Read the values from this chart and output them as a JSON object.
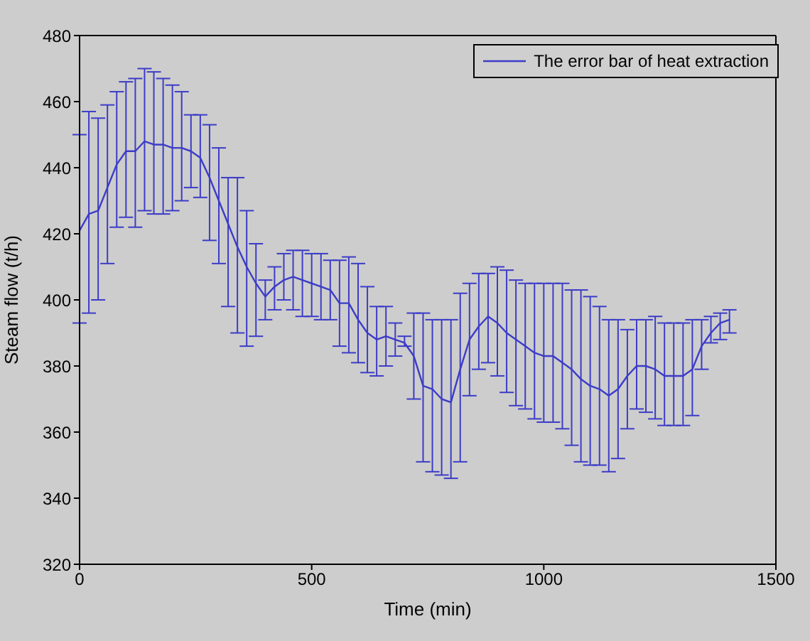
{
  "chart_data": {
    "type": "line",
    "xlabel": "Time (min)",
    "ylabel": "Steam flow (t/h)",
    "x": [
      0,
      20,
      40,
      60,
      80,
      100,
      120,
      140,
      160,
      180,
      200,
      220,
      240,
      260,
      280,
      300,
      320,
      340,
      360,
      380,
      400,
      420,
      440,
      460,
      480,
      500,
      520,
      540,
      560,
      580,
      600,
      620,
      640,
      660,
      680,
      700,
      720,
      740,
      760,
      780,
      800,
      820,
      840,
      860,
      880,
      900,
      920,
      940,
      960,
      980,
      1000,
      1020,
      1040,
      1060,
      1080,
      1100,
      1120,
      1140,
      1160,
      1180,
      1200,
      1220,
      1240,
      1260,
      1280,
      1300,
      1320,
      1340,
      1360,
      1380,
      1400
    ],
    "series": [
      {
        "name": "The error bar of heat extraction",
        "color": "#3c3cc8",
        "values": [
          421,
          426,
          427,
          434,
          441,
          445,
          445,
          448,
          447,
          447,
          446,
          446,
          445,
          443,
          437,
          430,
          423,
          416,
          410,
          405,
          401,
          404,
          406,
          407,
          406,
          405,
          404,
          403,
          399,
          399,
          394,
          390,
          388,
          389,
          388,
          387,
          383,
          374,
          373,
          370,
          369,
          379,
          388,
          392,
          395,
          393,
          390,
          388,
          386,
          384,
          383,
          383,
          381,
          379,
          376,
          374,
          373,
          371,
          373,
          377,
          380,
          380,
          379,
          377,
          377,
          377,
          379,
          386,
          390,
          393,
          394
        ],
        "errors": [
          [
            393,
            450
          ],
          [
            396,
            457
          ],
          [
            400,
            455
          ],
          [
            411,
            459
          ],
          [
            422,
            463
          ],
          [
            425,
            466
          ],
          [
            422,
            467
          ],
          [
            427,
            470
          ],
          [
            426,
            469
          ],
          [
            426,
            467
          ],
          [
            427,
            465
          ],
          [
            430,
            463
          ],
          [
            434,
            456
          ],
          [
            431,
            456
          ],
          [
            418,
            453
          ],
          [
            411,
            446
          ],
          [
            398,
            437
          ],
          [
            390,
            437
          ],
          [
            386,
            427
          ],
          [
            389,
            417
          ],
          [
            394,
            406
          ],
          [
            397,
            410
          ],
          [
            400,
            414
          ],
          [
            397,
            415
          ],
          [
            395,
            415
          ],
          [
            395,
            414
          ],
          [
            394,
            414
          ],
          [
            394,
            412
          ],
          [
            386,
            412
          ],
          [
            384,
            413
          ],
          [
            381,
            411
          ],
          [
            378,
            404
          ],
          [
            377,
            398
          ],
          [
            380,
            398
          ],
          [
            383,
            393
          ],
          [
            386,
            389
          ],
          [
            370,
            396
          ],
          [
            351,
            396
          ],
          [
            348,
            394
          ],
          [
            347,
            394
          ],
          [
            346,
            394
          ],
          [
            351,
            402
          ],
          [
            371,
            405
          ],
          [
            379,
            408
          ],
          [
            381,
            408
          ],
          [
            377,
            410
          ],
          [
            372,
            409
          ],
          [
            368,
            406
          ],
          [
            367,
            405
          ],
          [
            364,
            405
          ],
          [
            363,
            405
          ],
          [
            363,
            405
          ],
          [
            361,
            405
          ],
          [
            356,
            403
          ],
          [
            351,
            403
          ],
          [
            350,
            401
          ],
          [
            350,
            398
          ],
          [
            348,
            394
          ],
          [
            352,
            394
          ],
          [
            361,
            391
          ],
          [
            367,
            394
          ],
          [
            366,
            394
          ],
          [
            364,
            395
          ],
          [
            362,
            393
          ],
          [
            362,
            393
          ],
          [
            362,
            393
          ],
          [
            365,
            394
          ],
          [
            379,
            394
          ],
          [
            387,
            395
          ],
          [
            388,
            396
          ],
          [
            390,
            397
          ]
        ]
      }
    ],
    "xlim": [
      0,
      1500
    ],
    "xticks": [
      0,
      500,
      1000,
      1500
    ],
    "ylim": [
      320,
      480
    ],
    "yticks": [
      320,
      340,
      360,
      380,
      400,
      420,
      440,
      460,
      480
    ],
    "legend": "top right",
    "grid": false,
    "marker": "none",
    "line_style": "solid"
  }
}
